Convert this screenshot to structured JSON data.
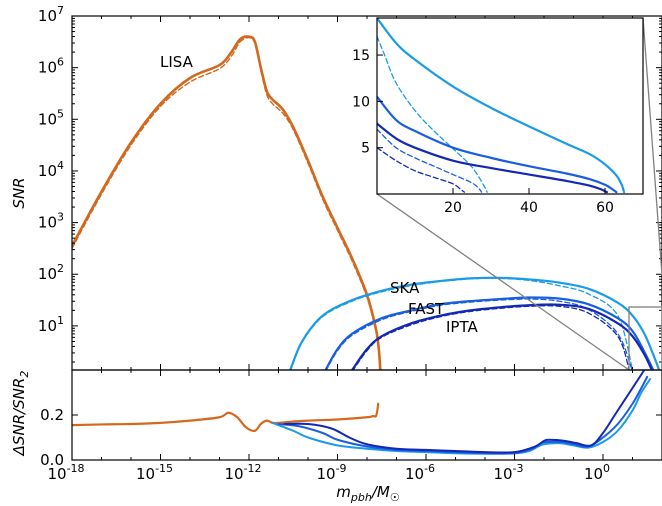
{
  "chart_data": [
    {
      "type": "line",
      "panel": "main",
      "xlabel": "m_pbh/M_⊙",
      "ylabel": "SNR",
      "x_log": true,
      "y_log": true,
      "xlim": [
        1e-18,
        100.0
      ],
      "ylim": [
        1.4,
        10000000.0
      ],
      "x_ticks": [
        {
          "exp": "-18",
          "v": -18
        },
        {
          "exp": "-15",
          "v": -15
        },
        {
          "exp": "-12",
          "v": -12
        },
        {
          "exp": "-9",
          "v": -9
        },
        {
          "exp": "-6",
          "v": -6
        },
        {
          "exp": "-3",
          "v": -3
        },
        {
          "exp": "0",
          "v": 0
        }
      ],
      "y_ticks": [
        {
          "exp": "1",
          "v": 1
        },
        {
          "exp": "2",
          "v": 2
        },
        {
          "exp": "3",
          "v": 3
        },
        {
          "exp": "4",
          "v": 4
        },
        {
          "exp": "5",
          "v": 5
        },
        {
          "exp": "6",
          "v": 6
        },
        {
          "exp": "7",
          "v": 7
        }
      ],
      "annotations": [
        "LISA",
        "SKA",
        "FAST",
        "IPTA"
      ],
      "series": [
        {
          "key": "LISA",
          "color": "#d2691e",
          "width": 2.6,
          "dash": false,
          "log_x": [
            -18,
            -17,
            -16,
            -15,
            -14,
            -13,
            -12.6,
            -12.3,
            -12,
            -11.8,
            -11.6,
            -11.4,
            -11.2,
            -11,
            -10.8,
            -10.5,
            -10,
            -9.5,
            -9,
            -8.5,
            -8,
            -7.7,
            -7.6,
            -7.55
          ],
          "log_y": [
            2.55,
            3.6,
            4.55,
            5.3,
            5.8,
            6.05,
            6.3,
            6.55,
            6.6,
            6.5,
            6.0,
            5.55,
            5.38,
            5.28,
            5.15,
            4.85,
            4.2,
            3.5,
            2.9,
            2.3,
            1.6,
            0.95,
            0.55,
            0.15
          ]
        },
        {
          "key": "LISA-dashed",
          "color": "#d2691e",
          "width": 1.4,
          "dash": true,
          "log_x": [
            -18,
            -17,
            -16,
            -15,
            -14,
            -13,
            -12.6,
            -12.3,
            -12,
            -11.8,
            -11.6,
            -11.4,
            -11.2,
            -11,
            -10.8,
            -10.5,
            -10,
            -9.5,
            -9,
            -8.5,
            -8,
            -7.7,
            -7.6,
            -7.55
          ],
          "log_y": [
            2.5,
            3.55,
            4.5,
            5.25,
            5.72,
            5.98,
            6.22,
            6.5,
            6.58,
            6.47,
            5.95,
            5.48,
            5.3,
            5.2,
            5.08,
            4.8,
            4.15,
            3.45,
            2.85,
            2.25,
            1.55,
            0.9,
            0.5,
            0.1
          ]
        },
        {
          "key": "SKA",
          "color": "#1a9be8",
          "width": 2.2,
          "dash": false,
          "log_x": [
            -10.6,
            -10.2,
            -9.5,
            -8.5,
            -7.5,
            -6.5,
            -5.5,
            -4.5,
            -3.5,
            -2.5,
            -1.5,
            -0.5,
            0.5,
            1,
            1.4,
            1.7,
            1.9
          ],
          "log_y": [
            0.15,
            0.7,
            1.2,
            1.5,
            1.68,
            1.8,
            1.87,
            1.92,
            1.93,
            1.9,
            1.84,
            1.72,
            1.45,
            1.2,
            0.85,
            0.45,
            0.15
          ]
        },
        {
          "key": "SKA-dashed",
          "color": "#1a9be8",
          "width": 1.3,
          "dash": true,
          "log_x": [
            -10.6,
            -10.2,
            -9.5,
            -8.5,
            -7.5,
            -6.5,
            -5.5,
            -4.5,
            -3.5,
            -2.5,
            -1.5,
            -0.5,
            0.5,
            1
          ],
          "log_y": [
            0.12,
            0.68,
            1.18,
            1.48,
            1.66,
            1.78,
            1.86,
            1.91,
            1.92,
            1.88,
            1.78,
            1.62,
            1.2,
            0.15
          ]
        },
        {
          "key": "FAST",
          "color": "#1a5ee0",
          "width": 2.2,
          "dash": false,
          "log_x": [
            -9.4,
            -9,
            -8.5,
            -7.5,
            -6.5,
            -5.5,
            -4.5,
            -3.5,
            -2.5,
            -1.5,
            -0.5,
            0.5,
            1,
            1.4,
            1.7
          ],
          "log_y": [
            0.15,
            0.55,
            0.85,
            1.15,
            1.3,
            1.42,
            1.48,
            1.52,
            1.55,
            1.53,
            1.42,
            1.15,
            0.9,
            0.5,
            0.15
          ]
        },
        {
          "key": "FAST-dashed",
          "color": "#1a5ee0",
          "width": 1.3,
          "dash": true,
          "log_x": [
            -9.4,
            -9,
            -8.5,
            -7.5,
            -6.5,
            -5.5,
            -4.5,
            -3.5,
            -2.5,
            -1.5,
            -0.5,
            0.5,
            1
          ],
          "log_y": [
            0.12,
            0.52,
            0.82,
            1.12,
            1.28,
            1.4,
            1.46,
            1.5,
            1.52,
            1.48,
            1.32,
            0.85,
            0.12
          ]
        },
        {
          "key": "IPTA",
          "color": "#1428b4",
          "width": 2.2,
          "dash": false,
          "log_x": [
            -8.5,
            -8,
            -7.5,
            -6.5,
            -5.5,
            -4.5,
            -3.5,
            -2.5,
            -1.5,
            -0.5,
            0.5,
            1,
            1.4,
            1.65
          ],
          "log_y": [
            0.15,
            0.55,
            0.8,
            1.05,
            1.2,
            1.3,
            1.36,
            1.4,
            1.41,
            1.33,
            1.05,
            0.8,
            0.45,
            0.15
          ]
        },
        {
          "key": "IPTA-dashed",
          "color": "#1428b4",
          "width": 1.3,
          "dash": true,
          "log_x": [
            -8.5,
            -8,
            -7.5,
            -6.5,
            -5.5,
            -4.5,
            -3.5,
            -2.5,
            -1.5,
            -0.5,
            0.5,
            0.9
          ],
          "log_y": [
            0.12,
            0.52,
            0.78,
            1.02,
            1.18,
            1.28,
            1.34,
            1.38,
            1.38,
            1.25,
            0.8,
            0.12
          ]
        }
      ]
    },
    {
      "type": "line",
      "panel": "inset",
      "xlim": [
        0,
        70
      ],
      "ylim": [
        0,
        19
      ],
      "x_ticks": [
        "20",
        "40",
        "60"
      ],
      "y_ticks": [
        "5",
        "10",
        "15"
      ],
      "series": [
        {
          "key": "SKA",
          "color": "#1a9be8",
          "width": 2.2,
          "dash": false,
          "x": [
            0,
            5,
            10,
            20,
            30,
            40,
            50,
            56,
            60,
            63,
            64.5,
            65
          ],
          "y": [
            19,
            16.3,
            14.5,
            11.6,
            9.3,
            7.3,
            5.4,
            4.3,
            3.2,
            2.0,
            0.9,
            0.2
          ]
        },
        {
          "key": "SKA-dashed",
          "color": "#1a9be8",
          "width": 1.3,
          "dash": true,
          "x": [
            0,
            2,
            5,
            10,
            15,
            20,
            25,
            28,
            29
          ],
          "y": [
            17,
            15,
            12,
            9,
            6.8,
            4.9,
            2.9,
            1.0,
            0.2
          ]
        },
        {
          "key": "FAST",
          "color": "#1a5ee0",
          "width": 2.2,
          "dash": false,
          "x": [
            0,
            5,
            10,
            20,
            30,
            40,
            50,
            56,
            60,
            62,
            63
          ],
          "y": [
            10.5,
            8.0,
            6.8,
            5.0,
            3.9,
            3.0,
            2.2,
            1.6,
            1.0,
            0.5,
            0.2
          ]
        },
        {
          "key": "FAST-dashed",
          "color": "#1a5ee0",
          "width": 1.3,
          "dash": true,
          "x": [
            0,
            5,
            10,
            15,
            20,
            25,
            27,
            27.5
          ],
          "y": [
            7.0,
            5.0,
            3.9,
            3.0,
            2.1,
            1.2,
            0.5,
            0.2
          ]
        },
        {
          "key": "IPTA",
          "color": "#1428b4",
          "width": 2.2,
          "dash": false,
          "x": [
            0,
            5,
            10,
            20,
            30,
            40,
            50,
            56,
            59,
            60.5
          ],
          "y": [
            7.6,
            6.0,
            5.0,
            3.6,
            2.8,
            2.1,
            1.4,
            0.9,
            0.5,
            0.2
          ]
        },
        {
          "key": "IPTA-dashed",
          "color": "#1428b4",
          "width": 1.3,
          "dash": true,
          "x": [
            0,
            5,
            10,
            15,
            20,
            22,
            23
          ],
          "y": [
            5.0,
            3.6,
            2.5,
            1.8,
            1.1,
            0.5,
            0.2
          ]
        }
      ]
    },
    {
      "type": "line",
      "panel": "ratio",
      "xlabel": "m_pbh/M_⊙",
      "ylabel": "ΔSNR/SNR_2",
      "x_log": true,
      "xlim": [
        1e-18,
        100.0
      ],
      "ylim": [
        0,
        0.4
      ],
      "y_ticks": [
        "0.0",
        "0.2"
      ],
      "series": [
        {
          "key": "LISA",
          "color": "#d2691e",
          "width": 2.2,
          "log_x": [
            -18,
            -17,
            -16,
            -15,
            -14,
            -13,
            -12.7,
            -12.4,
            -12.1,
            -11.8,
            -11.6,
            -11.4,
            -11.2,
            -11,
            -10.6,
            -10,
            -9,
            -8,
            -7.8,
            -7.7,
            -7.65,
            -7.62
          ],
          "y": [
            0.155,
            0.158,
            0.16,
            0.165,
            0.175,
            0.19,
            0.21,
            0.19,
            0.145,
            0.13,
            0.16,
            0.175,
            0.165,
            0.165,
            0.17,
            0.175,
            0.18,
            0.19,
            0.195,
            0.195,
            0.22,
            0.25
          ]
        },
        {
          "key": "SKA",
          "color": "#1a9be8",
          "width": 2.0,
          "log_x": [
            -11.2,
            -10.5,
            -10,
            -9,
            -8,
            -7,
            -6,
            -5,
            -4,
            -3,
            -2.5,
            -2.2,
            -2,
            -1.5,
            -1,
            -0.5,
            0,
            0.5,
            1,
            1.3,
            1.6
          ],
          "y": [
            0.165,
            0.13,
            0.1,
            0.065,
            0.05,
            0.04,
            0.035,
            0.03,
            0.028,
            0.03,
            0.04,
            0.06,
            0.07,
            0.075,
            0.065,
            0.055,
            0.08,
            0.13,
            0.22,
            0.3,
            0.36
          ]
        },
        {
          "key": "FAST",
          "color": "#1a5ee0",
          "width": 2.0,
          "log_x": [
            -11,
            -10.3,
            -9.5,
            -9,
            -8,
            -7,
            -6,
            -5,
            -4,
            -3,
            -2.4,
            -2.1,
            -1.9,
            -1.4,
            -1,
            -0.5,
            0,
            0.5,
            1,
            1.3,
            1.5
          ],
          "y": [
            0.16,
            0.15,
            0.12,
            0.09,
            0.06,
            0.045,
            0.04,
            0.035,
            0.03,
            0.03,
            0.05,
            0.075,
            0.08,
            0.08,
            0.07,
            0.06,
            0.1,
            0.16,
            0.25,
            0.32,
            0.37
          ]
        },
        {
          "key": "IPTA",
          "color": "#1428b4",
          "width": 2.0,
          "log_x": [
            -10.8,
            -10,
            -9.2,
            -8.6,
            -8,
            -7,
            -6,
            -5,
            -4,
            -3,
            -2.3,
            -2,
            -1.8,
            -1.3,
            -0.9,
            -0.4,
            0,
            0.4,
            0.9,
            1.2,
            1.4
          ],
          "y": [
            0.16,
            0.16,
            0.14,
            0.1,
            0.07,
            0.05,
            0.045,
            0.04,
            0.035,
            0.035,
            0.06,
            0.085,
            0.09,
            0.085,
            0.075,
            0.065,
            0.12,
            0.2,
            0.3,
            0.36,
            0.4
          ]
        }
      ]
    }
  ]
}
